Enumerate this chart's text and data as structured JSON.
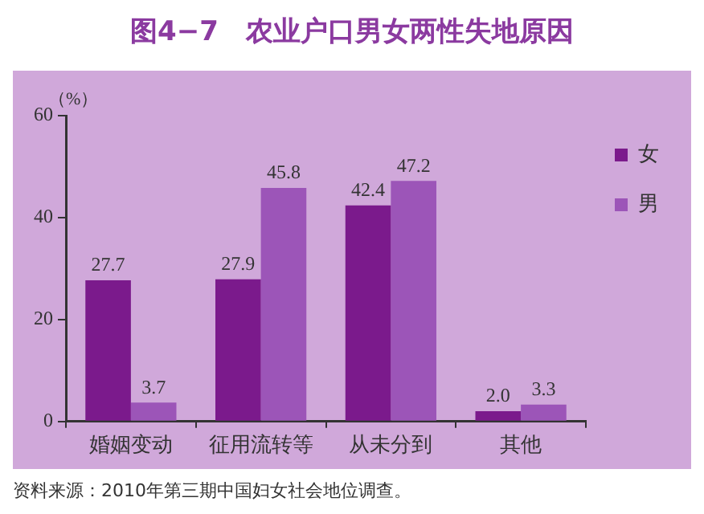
{
  "chart_data": {
    "type": "bar",
    "title": "图4−7　农业户口男女两性失地原因",
    "ylabel": "（%）",
    "categories": [
      "婚姻变动",
      "征用流转等",
      "从未分到",
      "其他"
    ],
    "series": [
      {
        "name": "女",
        "color": "#7b1a8c",
        "values": [
          27.7,
          27.9,
          42.4,
          2.0
        ],
        "value_labels": [
          "27.7",
          "27.9",
          "42.4",
          "2.0"
        ]
      },
      {
        "name": "男",
        "color": "#9c55b8",
        "values": [
          3.7,
          45.8,
          47.2,
          3.3
        ],
        "value_labels": [
          "3.7",
          "45.8",
          "47.2",
          "3.3"
        ]
      }
    ],
    "ylim": [
      0,
      60
    ],
    "yticks": [
      0,
      20,
      40,
      60
    ],
    "grid": false,
    "legend": "top right",
    "annotations": [
      "资料来源：2010年第三期中国妇女社会地位调查。"
    ]
  }
}
